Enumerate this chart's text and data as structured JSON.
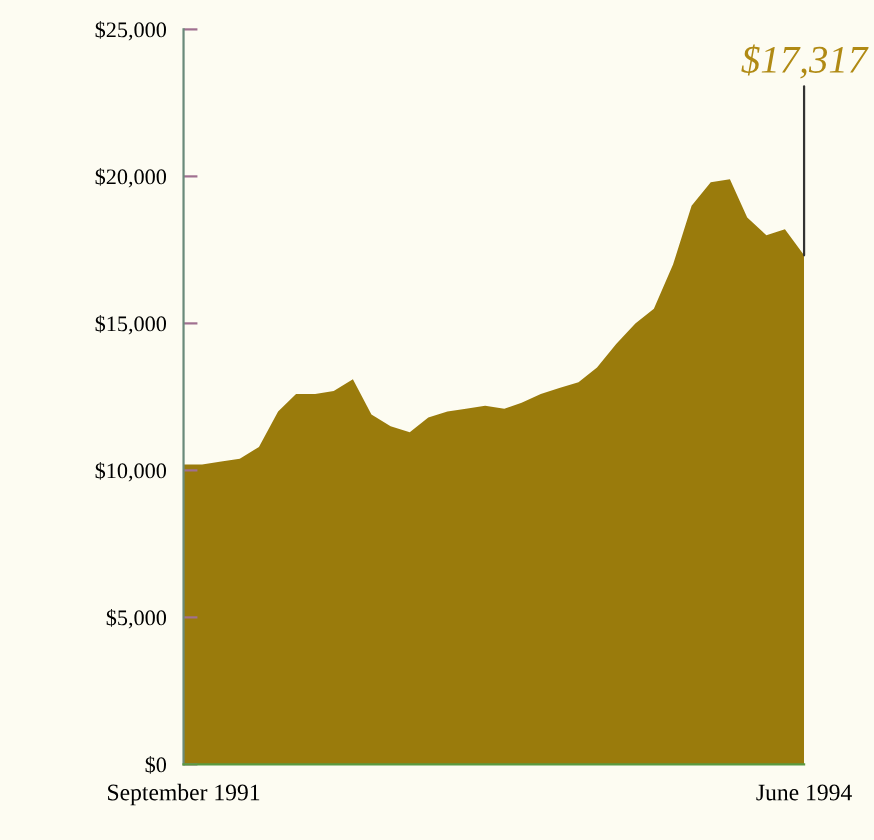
{
  "chart_data": {
    "type": "area",
    "x": [
      "1991-09",
      "1991-10",
      "1991-11",
      "1991-12",
      "1992-01",
      "1992-02",
      "1992-03",
      "1992-04",
      "1992-05",
      "1992-06",
      "1992-07",
      "1992-08",
      "1992-09",
      "1992-10",
      "1992-11",
      "1992-12",
      "1993-01",
      "1993-02",
      "1993-03",
      "1993-04",
      "1993-05",
      "1993-06",
      "1993-07",
      "1993-08",
      "1993-09",
      "1993-10",
      "1993-11",
      "1993-12",
      "1994-01",
      "1994-02",
      "1994-03",
      "1994-04",
      "1994-05",
      "1994-06"
    ],
    "series": [
      {
        "color": "#9a7b0c",
        "values": [
          10200,
          10200,
          10300,
          10400,
          10800,
          12000,
          12600,
          12600,
          12700,
          13100,
          11900,
          11500,
          11300,
          11800,
          12000,
          12100,
          12200,
          12100,
          12300,
          12600,
          12800,
          13000,
          13500,
          14300,
          15000,
          15500,
          17000,
          19000,
          19800,
          19900,
          18600,
          18000,
          18200,
          17317
        ]
      }
    ],
    "xlim": [
      "1991-09",
      "1994-06"
    ],
    "xticks": [
      {
        "value": "1991-09",
        "label": "September 1991"
      },
      {
        "value": "1994-06",
        "label": "June 1994"
      }
    ],
    "ylim": [
      0,
      25000
    ],
    "yticks": [
      {
        "value": 0,
        "label": "$0"
      },
      {
        "value": 5000,
        "label": "$5,000"
      },
      {
        "value": 10000,
        "label": "$10,000"
      },
      {
        "value": 15000,
        "label": "$15,000"
      },
      {
        "value": 20000,
        "label": "$20,000"
      },
      {
        "value": 25000,
        "label": "$25,000"
      }
    ],
    "annotations": [
      {
        "text": "$17,317",
        "x": "1994-06",
        "y": 17317
      }
    ],
    "grid": false,
    "legend": false
  }
}
